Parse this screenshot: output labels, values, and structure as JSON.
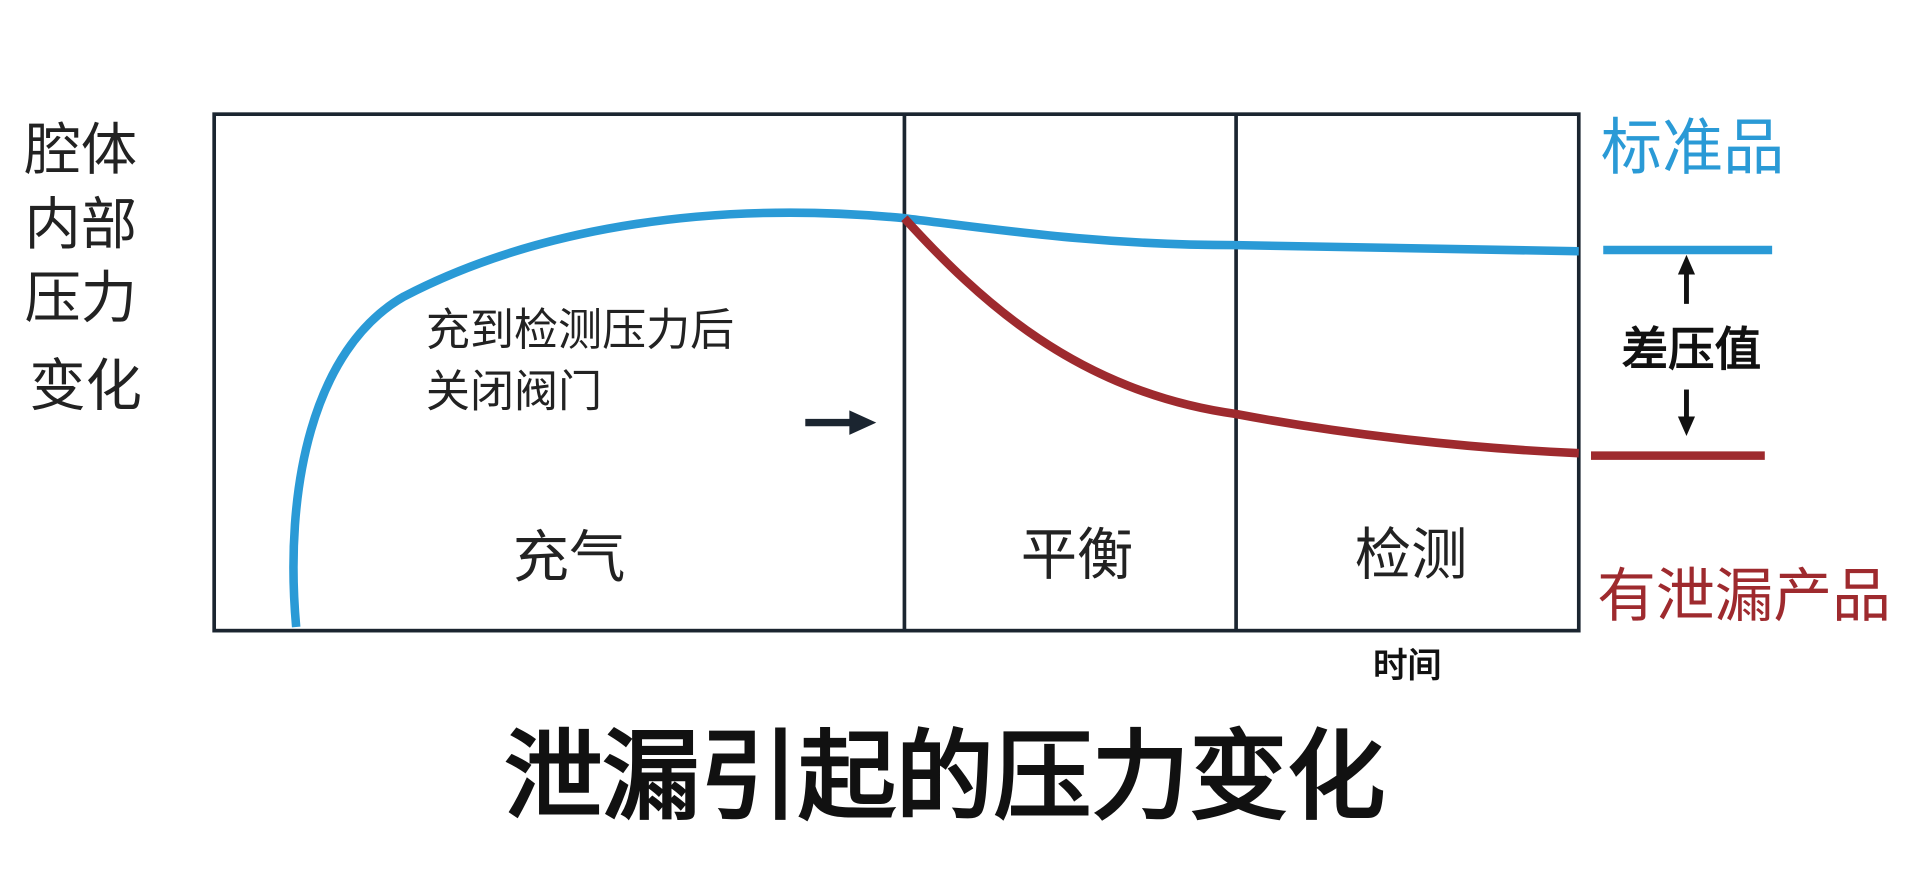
{
  "y_axis_label": [
    "腔体",
    "内部",
    "压力",
    "变化"
  ],
  "phases": [
    "充气",
    "平衡",
    "检测"
  ],
  "annotation": [
    "充到检测压力后",
    "关闭阀门"
  ],
  "legend": {
    "standard": "标准品",
    "leaking": "有泄漏产品",
    "difference": "差压值"
  },
  "x_axis_label": "时间",
  "title": "泄漏引起的压力变化"
}
